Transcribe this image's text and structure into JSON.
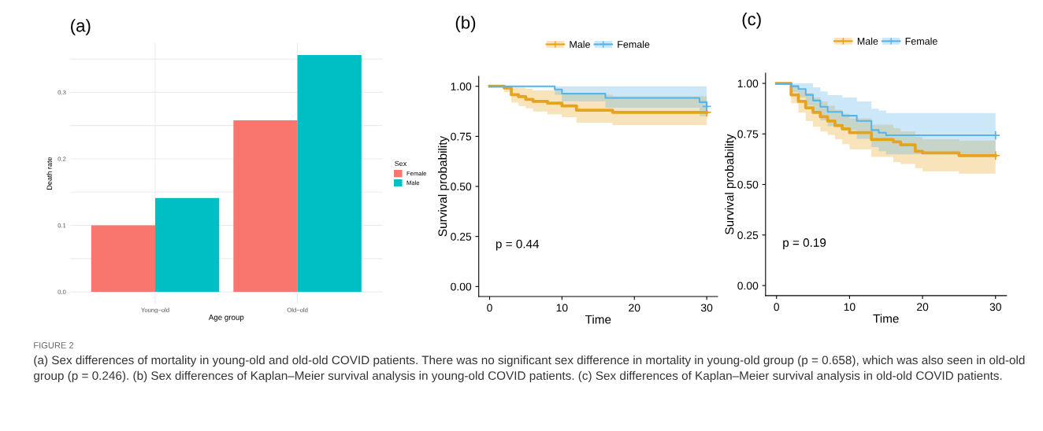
{
  "chart_data": [
    {
      "type": "bar",
      "title": "(a)",
      "xlabel": "Age group",
      "ylabel": "Death rate",
      "legend_title": "Sex",
      "legend": "right",
      "grid": true,
      "categories": [
        "Young−old",
        "Old−old"
      ],
      "series": [
        {
          "name": "Female",
          "color": "#f8766d",
          "values": [
            0.1,
            0.258
          ]
        },
        {
          "name": "Male",
          "color": "#00bfc4",
          "values": [
            0.141,
            0.356
          ]
        }
      ],
      "ylim": [
        -0.018,
        0.374
      ],
      "yticks": [
        {
          "value": 0,
          "label": "0.0"
        },
        {
          "value": 0.05,
          "label": null
        },
        {
          "value": 0.1,
          "label": "0.1"
        },
        {
          "value": 0.15,
          "label": null
        },
        {
          "value": 0.2,
          "label": "0.2"
        },
        {
          "value": 0.25,
          "label": null
        },
        {
          "value": 0.3,
          "label": "0.3"
        },
        {
          "value": 0.35,
          "label": null
        }
      ],
      "annotations": [
        "FIGURE 2",
        "(a) Sex differences of mortality in young-old and old-old COVID patients. There was no significant sex difference in mortality in young-old group (p = 0.658), which was also seen in old-old group (p = 0.246). (b) Sex differences of Kaplan–Meier survival analysis in young-old COVID patients. (c) Sex differences of Kaplan–Meier survival analysis in old-old COVID patients."
      ]
    },
    {
      "type": "step",
      "title": "(b)",
      "xlabel": "Time",
      "ylabel": "Survival probability",
      "legend": "top",
      "series": [
        {
          "name": "Male",
          "color": "#e7a31c",
          "x": [
            0,
            2,
            3,
            4,
            5,
            6,
            8,
            10,
            12,
            17,
            30
          ],
          "values": [
            1.0,
            0.992,
            0.958,
            0.948,
            0.935,
            0.925,
            0.916,
            0.902,
            0.881,
            0.87,
            0.87
          ],
          "lower": [
            1.0,
            0.971,
            0.919,
            0.902,
            0.89,
            0.874,
            0.859,
            0.846,
            0.818,
            0.806,
            0.806
          ],
          "upper": [
            1.0,
            1.0,
            0.995,
            0.995,
            0.987,
            0.979,
            0.979,
            0.958,
            0.958,
            0.95,
            0.95
          ]
        },
        {
          "name": "Female",
          "color": "#56b4e9",
          "x": [
            0,
            9,
            10,
            16,
            29,
            30
          ],
          "values": [
            1.0,
            0.984,
            0.963,
            0.942,
            0.921,
            0.899
          ],
          "lower": [
            1.0,
            0.958,
            0.925,
            0.893,
            0.851,
            0.851
          ],
          "upper": [
            1.0,
            1.0,
            1.0,
            1.0,
            1.0,
            1.0
          ]
        },
        {
          "type": "scatter",
          "marker": "cross",
          "color": "#e7a31c",
          "x": [
            30
          ],
          "values": [
            0.87
          ]
        },
        {
          "type": "scatter",
          "marker": "cross",
          "color": "#56b4e9",
          "x": [
            30
          ],
          "values": [
            0.899
          ]
        }
      ],
      "xlim": [
        -1.5,
        31.5
      ],
      "xticks": [
        0,
        10,
        20,
        30
      ],
      "ylim": [
        -0.05,
        1.05
      ],
      "yticks": [
        {
          "value": 0,
          "label": "0.00"
        },
        {
          "value": 0.25,
          "label": "0.25"
        },
        {
          "value": 0.5,
          "label": "0.50"
        },
        {
          "value": 0.75,
          "label": "0.75"
        },
        {
          "value": 1,
          "label": "1.00"
        }
      ],
      "annotations": [
        "p = 0.44"
      ]
    },
    {
      "type": "step",
      "title": "(c)",
      "xlabel": "Time",
      "ylabel": "Survival probability",
      "legend": "top",
      "series": [
        {
          "name": "Male",
          "color": "#e7a31c",
          "x": [
            0,
            2,
            3,
            4,
            5,
            6,
            7,
            8,
            9,
            10,
            13,
            16,
            17,
            19,
            20,
            25,
            30
          ],
          "values": [
            1.0,
            0.943,
            0.911,
            0.879,
            0.857,
            0.835,
            0.814,
            0.791,
            0.775,
            0.756,
            0.722,
            0.711,
            0.696,
            0.664,
            0.656,
            0.643,
            0.643
          ],
          "lower": [
            1.0,
            0.902,
            0.855,
            0.814,
            0.786,
            0.762,
            0.745,
            0.724,
            0.7,
            0.674,
            0.636,
            0.611,
            0.601,
            0.581,
            0.565,
            0.554,
            0.554
          ],
          "upper": [
            1.0,
            0.99,
            0.966,
            0.952,
            0.93,
            0.911,
            0.889,
            0.87,
            0.85,
            0.827,
            0.796,
            0.778,
            0.762,
            0.736,
            0.724,
            0.717,
            0.717
          ]
        },
        {
          "name": "Female",
          "color": "#56b4e9",
          "x": [
            0,
            2,
            3,
            4,
            5,
            6,
            7,
            9,
            11,
            13,
            14,
            15,
            30
          ],
          "values": [
            1.0,
            0.986,
            0.972,
            0.943,
            0.915,
            0.884,
            0.859,
            0.84,
            0.814,
            0.769,
            0.756,
            0.743,
            0.743
          ],
          "lower": [
            1.0,
            0.956,
            0.93,
            0.891,
            0.85,
            0.817,
            0.788,
            0.769,
            0.726,
            0.685,
            0.665,
            0.649,
            0.649
          ],
          "upper": [
            1.0,
            1.0,
            1.0,
            1.0,
            0.981,
            0.96,
            0.942,
            0.93,
            0.911,
            0.875,
            0.866,
            0.853,
            0.853
          ]
        },
        {
          "type": "scatter",
          "marker": "cross",
          "color": "#e7a31c",
          "x": [
            30
          ],
          "values": [
            0.643
          ]
        },
        {
          "type": "scatter",
          "marker": "cross",
          "color": "#56b4e9",
          "x": [
            30
          ],
          "values": [
            0.743
          ]
        }
      ],
      "xlim": [
        -1.5,
        31.5
      ],
      "xticks": [
        0,
        10,
        20,
        30
      ],
      "ylim": [
        -0.05,
        1.05
      ],
      "yticks": [
        {
          "value": 0,
          "label": "0.00"
        },
        {
          "value": 0.25,
          "label": "0.25"
        },
        {
          "value": 0.5,
          "label": "0.50"
        },
        {
          "value": 0.75,
          "label": "0.75"
        },
        {
          "value": 1,
          "label": "1.00"
        }
      ],
      "annotations": [
        "p = 0.19"
      ]
    }
  ]
}
